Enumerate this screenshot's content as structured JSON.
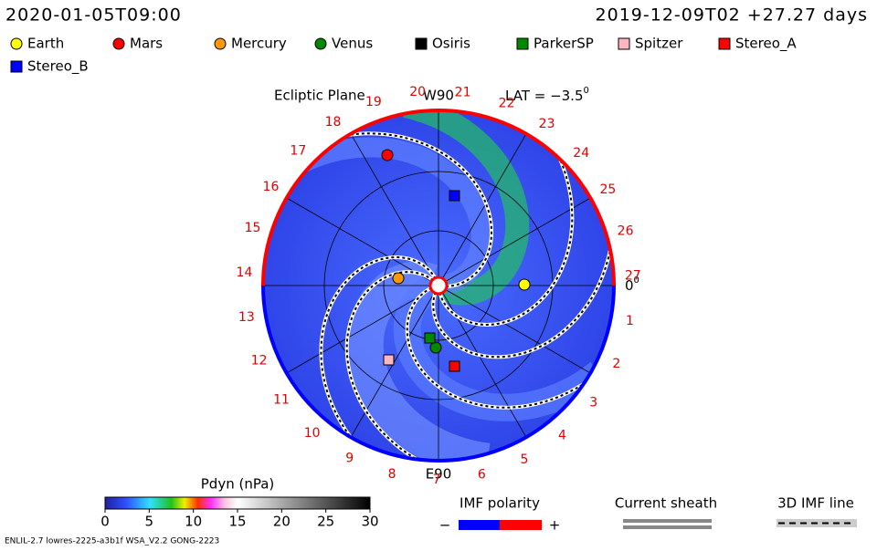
{
  "header": {
    "sim_time": "2020-01-05T09:00",
    "run_start": "2019-12-09T02 +27.27 days"
  },
  "legend": [
    {
      "name": "Earth",
      "color": "#ffff00",
      "shape": "circle"
    },
    {
      "name": "Mars",
      "color": "#ff0000",
      "shape": "circle"
    },
    {
      "name": "Mercury",
      "color": "#ff9900",
      "shape": "circle"
    },
    {
      "name": "Venus",
      "color": "#008800",
      "shape": "circle"
    },
    {
      "name": "Osiris",
      "color": "#000000",
      "shape": "square"
    },
    {
      "name": "ParkerSP",
      "color": "#008800",
      "shape": "square"
    },
    {
      "name": "Spitzer",
      "color": "#ffb6c1",
      "shape": "square"
    },
    {
      "name": "Stereo_A",
      "color": "#ff0000",
      "shape": "square"
    },
    {
      "name": "Stereo_B",
      "color": "#0000ff",
      "shape": "square"
    }
  ],
  "plot": {
    "title": "Ecliptic Plane",
    "top_label": "W90",
    "bottom_label": "E90",
    "lat_label": "LAT = −3.5",
    "lat_sup": "0",
    "zero_label": "0",
    "zero_sup": "0",
    "rotation_labels": [
      1,
      2,
      3,
      4,
      5,
      6,
      7,
      8,
      9,
      10,
      11,
      12,
      13,
      14,
      15,
      16,
      17,
      18,
      19,
      20,
      21,
      22,
      23,
      24,
      25,
      26,
      27
    ]
  },
  "colorbar": {
    "title": "Pdyn (nPa)",
    "range": [
      0,
      30
    ],
    "ticks": [
      0,
      5,
      10,
      15,
      20,
      25,
      30
    ]
  },
  "imf": {
    "title": "IMF polarity",
    "minus": "−",
    "plus": "+"
  },
  "current_sheath": "Current sheath",
  "imf_line": "3D IMF line",
  "footer": "ENLIL-2.7 lowres-2225-a3b1f WSA_V2.2 GONG-2223"
}
